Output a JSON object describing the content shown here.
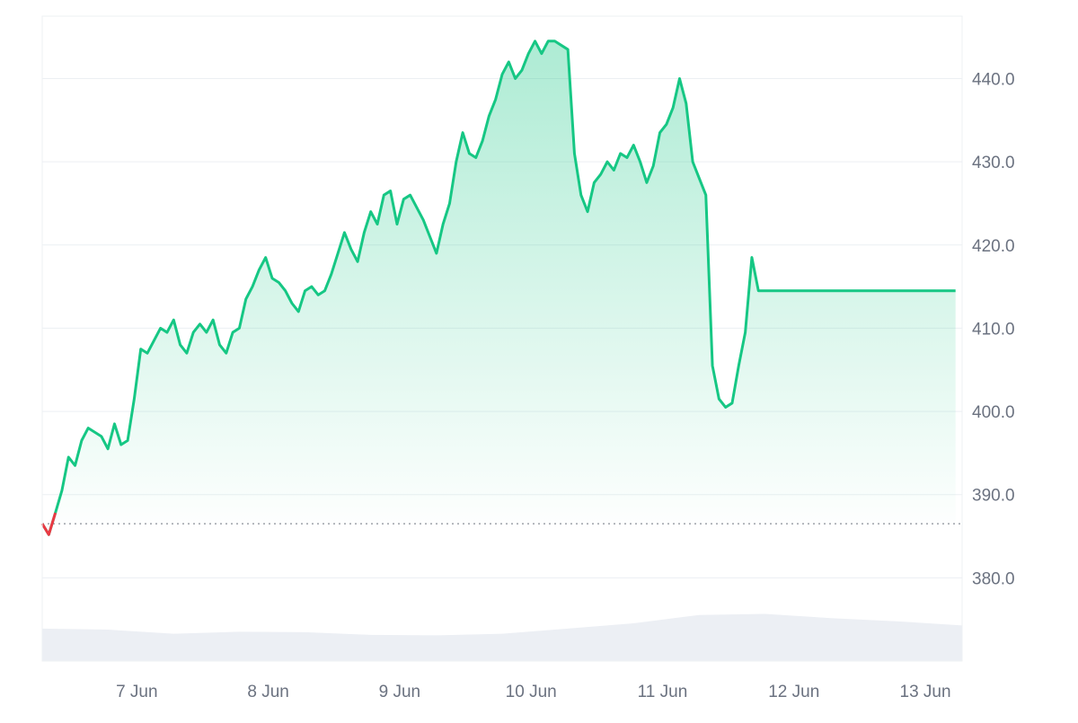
{
  "chart_data": {
    "type": "area",
    "title": "",
    "xlabel": "",
    "ylabel": "",
    "grid": true,
    "legend": "none",
    "x_ticks": [
      "7 Jun",
      "8 Jun",
      "9 Jun",
      "10 Jun",
      "11 Jun",
      "12 Jun",
      "13 Jun"
    ],
    "y_ticks": [
      "380.0",
      "390.0",
      "400.0",
      "410.0",
      "420.0",
      "430.0",
      "440.0"
    ],
    "ylim": [
      370,
      447.5
    ],
    "xlim": [
      0,
      7.0
    ],
    "baseline": 386.5,
    "series": [
      {
        "x": [
          0.0,
          0.05,
          0.1,
          0.15,
          0.2,
          0.25,
          0.3,
          0.35,
          0.4,
          0.45,
          0.5,
          0.55,
          0.6,
          0.65,
          0.7,
          0.75,
          0.8,
          0.85,
          0.9,
          0.95,
          1.0,
          1.05,
          1.1,
          1.15,
          1.2,
          1.25,
          1.3,
          1.35,
          1.4,
          1.45,
          1.5,
          1.55,
          1.6,
          1.65,
          1.7,
          1.75,
          1.8,
          1.85,
          1.9,
          1.95,
          2.0,
          2.05,
          2.1,
          2.15,
          2.2,
          2.25,
          2.3,
          2.35,
          2.4,
          2.45,
          2.5,
          2.55,
          2.6,
          2.65,
          2.7,
          2.75,
          2.8,
          2.85,
          2.9,
          2.95,
          3.0,
          3.05,
          3.1,
          3.15,
          3.2,
          3.25,
          3.3,
          3.35,
          3.4,
          3.45,
          3.5,
          3.55,
          3.6,
          3.65,
          3.7,
          3.75,
          3.8,
          3.85,
          3.9,
          3.95,
          4.0,
          4.05,
          4.1,
          4.15,
          4.2,
          4.25,
          4.3,
          4.35,
          4.4,
          4.45,
          4.5,
          4.55,
          4.6,
          4.65,
          4.7,
          4.75,
          4.8,
          4.85,
          4.9,
          4.95,
          5.0,
          5.05,
          5.1,
          5.15,
          5.2,
          5.25,
          5.3,
          5.35,
          5.4,
          5.45,
          5.5,
          5.55,
          5.6,
          5.65,
          5.7,
          5.75,
          5.8,
          5.85,
          5.9,
          5.95,
          6.0,
          6.05,
          6.1,
          6.15,
          6.2,
          6.25,
          6.3,
          6.35,
          6.4,
          6.45,
          6.5,
          6.55,
          6.6,
          6.65,
          6.7,
          6.75,
          6.8,
          6.85,
          6.9,
          6.95,
          7.0
        ],
        "values": [
          386.5,
          385.2,
          387.8,
          390.5,
          394.5,
          393.5,
          396.5,
          398.0,
          397.5,
          397.0,
          395.5,
          398.5,
          396.0,
          396.5,
          401.5,
          407.5,
          407.0,
          408.5,
          410.0,
          409.5,
          411.0,
          408.0,
          407.0,
          409.5,
          410.5,
          409.5,
          411.0,
          408.0,
          407.0,
          409.5,
          410.0,
          413.5,
          415.0,
          417.0,
          418.5,
          416.0,
          415.5,
          414.5,
          413.0,
          412.0,
          414.5,
          415.0,
          414.0,
          414.5,
          416.5,
          419.0,
          421.5,
          419.5,
          418.0,
          421.5,
          424.0,
          422.5,
          426.0,
          426.5,
          422.5,
          425.5,
          426.0,
          424.5,
          423.0,
          421.0,
          419.0,
          422.5,
          425.0,
          430.0,
          433.5,
          431.0,
          430.5,
          432.5,
          435.5,
          437.5,
          440.5,
          442.0,
          440.0,
          441.0,
          443.0,
          444.5,
          443.0,
          444.5,
          444.5,
          444.0,
          443.5,
          431.0,
          426.0,
          424.0,
          427.5,
          428.5,
          430.0,
          429.0,
          431.0,
          430.5,
          432.0,
          430.0,
          427.5,
          429.5,
          433.5,
          434.5,
          436.5,
          440.0,
          437.0,
          430.0,
          428.0,
          426.0,
          405.5,
          401.5,
          400.5,
          401.0,
          405.5,
          409.5,
          418.5,
          414.5,
          414.5,
          414.5,
          414.5,
          414.5,
          414.5,
          414.5,
          414.5,
          414.5,
          414.5,
          414.5,
          414.5,
          414.5,
          414.5,
          414.5,
          414.5,
          414.5,
          414.5,
          414.5,
          414.5,
          414.5,
          414.5,
          414.5,
          414.5,
          414.5,
          414.5,
          414.5,
          414.5,
          414.5,
          414.5,
          414.5,
          414.5
        ]
      }
    ],
    "volume": {
      "x": [
        0.0,
        0.5,
        1.0,
        1.5,
        2.0,
        2.5,
        3.0,
        3.5,
        4.0,
        4.5,
        5.0,
        5.5,
        6.0,
        6.5,
        7.0
      ],
      "values": [
        0.62,
        0.6,
        0.52,
        0.56,
        0.55,
        0.5,
        0.49,
        0.52,
        0.62,
        0.72,
        0.88,
        0.9,
        0.82,
        0.76,
        0.68
      ]
    },
    "colors": {
      "line_up": "#16c784",
      "line_down": "#ea3943",
      "area_fill_top": "#16c784",
      "volume_fill": "#eceff4",
      "grid": "#eceff3",
      "axis_text": "#6b7280",
      "baseline": "#8a8f98"
    }
  }
}
